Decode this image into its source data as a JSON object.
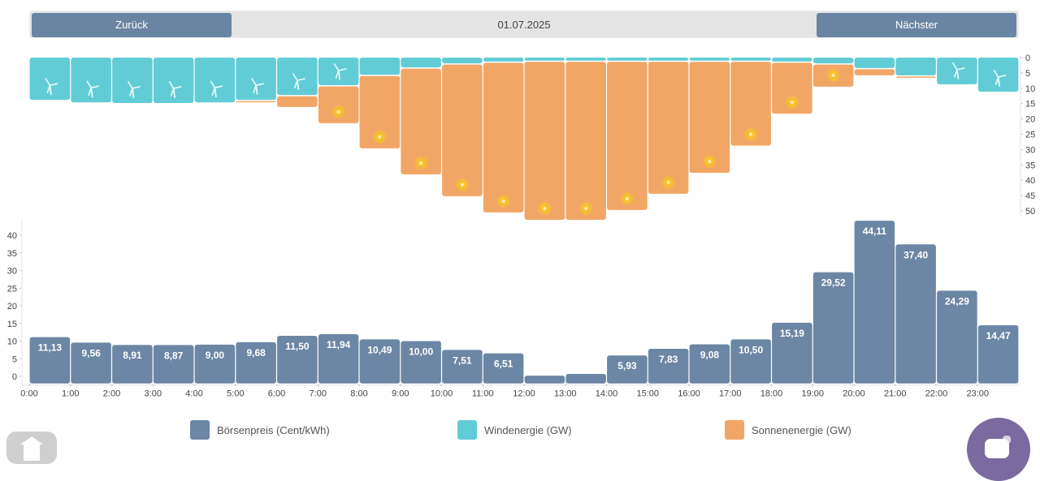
{
  "nav": {
    "prev_label": "Zurück",
    "date": "01.07.2025",
    "next_label": "Nächster"
  },
  "colors": {
    "price": "#6c87a5",
    "wind": "#62ccd6",
    "solar": "#f2a666",
    "sun_icon": "#f7c12c",
    "nav_button": "#6985a3",
    "chat_button": "#7a6a9f"
  },
  "legend": [
    {
      "label": "Börsenpreis (Cent/kWh)",
      "color": "#6c87a5"
    },
    {
      "label": "Windenergie (GW)",
      "color": "#62ccd6"
    },
    {
      "label": "Sonnenenergie (GW)",
      "color": "#f2a666"
    }
  ],
  "chart_data": [
    {
      "type": "bar",
      "title": "Energy generation (stacked, downward)",
      "stacked": true,
      "orientation": "inverted-y",
      "categories": [
        "0:00",
        "1:00",
        "2:00",
        "3:00",
        "4:00",
        "5:00",
        "6:00",
        "7:00",
        "8:00",
        "9:00",
        "10:00",
        "11:00",
        "12:00",
        "13:00",
        "14:00",
        "15:00",
        "16:00",
        "17:00",
        "18:00",
        "19:00",
        "20:00",
        "21:00",
        "22:00",
        "23:00"
      ],
      "series": [
        {
          "name": "Windenergie (GW)",
          "values": [
            13.8,
            14.6,
            14.8,
            14.8,
            14.6,
            13.8,
            12.2,
            9.0,
            5.6,
            3.2,
            1.9,
            1.3,
            1.0,
            1.0,
            1.0,
            1.0,
            1.0,
            1.0,
            1.3,
            1.9,
            3.4,
            5.8,
            8.7,
            11.1
          ]
        },
        {
          "name": "Sonnenenergie (GW)",
          "values": [
            0,
            0,
            0,
            0,
            0,
            0.5,
            3.9,
            12.4,
            24.0,
            34.9,
            43.3,
            49.2,
            51.9,
            51.9,
            48.7,
            43.4,
            36.6,
            27.7,
            17.0,
            7.6,
            2.4,
            0.1,
            0,
            0
          ]
        }
      ],
      "yticks": [
        0,
        5,
        10,
        15,
        20,
        25,
        30,
        35,
        40,
        45,
        50
      ],
      "ylim": [
        0,
        52
      ],
      "ylabel": "",
      "xlabel": "",
      "axis_side": "right",
      "wind_icon_min_gw": 8,
      "sun_icon_min_gw": 7
    },
    {
      "type": "bar",
      "title": "Börsenpreis",
      "categories": [
        "0:00",
        "1:00",
        "2:00",
        "3:00",
        "4:00",
        "5:00",
        "6:00",
        "7:00",
        "8:00",
        "9:00",
        "10:00",
        "11:00",
        "12:00",
        "13:00",
        "14:00",
        "15:00",
        "16:00",
        "17:00",
        "18:00",
        "19:00",
        "20:00",
        "21:00",
        "22:00",
        "23:00"
      ],
      "values": [
        11.13,
        9.56,
        8.91,
        8.87,
        9.0,
        9.68,
        11.5,
        11.94,
        10.49,
        10.0,
        7.51,
        6.51,
        0.2,
        0.7,
        5.93,
        7.83,
        9.08,
        10.5,
        15.19,
        29.52,
        44.11,
        37.4,
        24.29,
        14.47
      ],
      "data_labels": [
        "11,13",
        "9,56",
        "8,91",
        "8,87",
        "9,00",
        "9,68",
        "11,50",
        "11,94",
        "10,49",
        "10,00",
        "7,51",
        "6,51",
        "",
        "",
        "5,93",
        "7,83",
        "9,08",
        "10,50",
        "15,19",
        "29,52",
        "44,11",
        "37,40",
        "24,29",
        "14,47"
      ],
      "xticks": [
        "0:00",
        "1:00",
        "2:00",
        "3:00",
        "4:00",
        "5:00",
        "6:00",
        "7:00",
        "8:00",
        "9:00",
        "10:00",
        "11:00",
        "12:00",
        "13:00",
        "14:00",
        "15:00",
        "16:00",
        "17:00",
        "18:00",
        "19:00",
        "20:00",
        "21:00",
        "22:00",
        "23:00"
      ],
      "yticks": [
        0,
        5,
        10,
        15,
        20,
        25,
        30,
        35,
        40
      ],
      "ylim": [
        -2,
        45
      ],
      "ylabel": "",
      "xlabel": "",
      "axis_side": "left"
    }
  ]
}
